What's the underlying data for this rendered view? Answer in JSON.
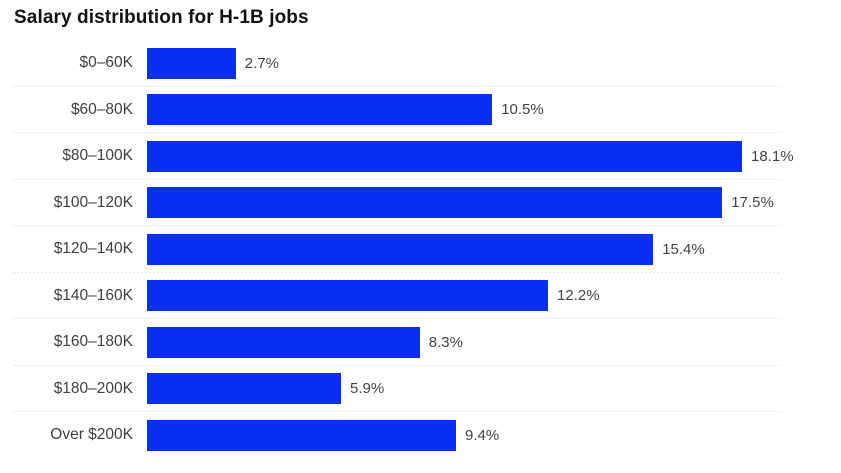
{
  "title": "Salary distribution for H-1B jobs",
  "chart_data": {
    "type": "bar",
    "orientation": "horizontal",
    "title": "Salary distribution for H-1B jobs",
    "categories": [
      "$0–60K",
      "$60–80K",
      "$80–100K",
      "$100–120K",
      "$120–140K",
      "$140–160K",
      "$160–180K",
      "$180–200K",
      "Over $200K"
    ],
    "values": [
      2.7,
      10.5,
      18.1,
      17.5,
      15.4,
      12.2,
      8.3,
      5.9,
      9.4
    ],
    "value_labels": [
      "2.7%",
      "10.5%",
      "18.1%",
      "17.5%",
      "15.4%",
      "12.2%",
      "8.3%",
      "5.9%",
      "9.4%"
    ],
    "xlabel": "",
    "ylabel": "",
    "xlim": [
      0,
      18.1
    ],
    "grid": false,
    "legend": false,
    "bar_color": "#0b2ff2",
    "separator_color": "#c9c9c9",
    "label_color": "#3f3f3f",
    "title_color": "#121212"
  }
}
